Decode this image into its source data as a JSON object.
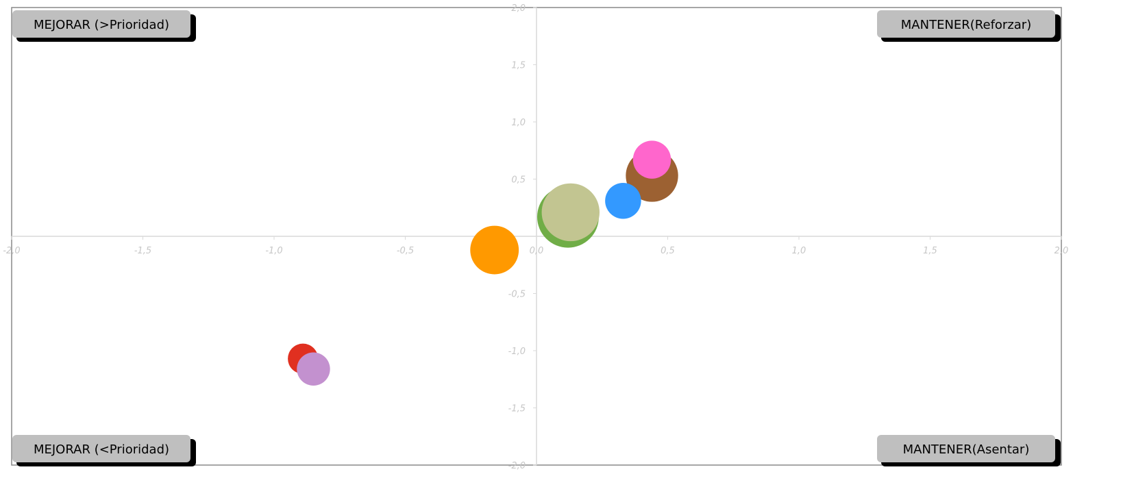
{
  "chart_data": {
    "type": "scatter",
    "title": "",
    "xlabel": "",
    "ylabel": "",
    "xlim": [
      -2.0,
      2.0
    ],
    "ylim": [
      -2.0,
      2.0
    ],
    "grid": false,
    "legend": "none",
    "x_ticks": [
      "-2,0",
      "-1,5",
      "-1,0",
      "-0,5",
      "0,0",
      "0,5",
      "1,0",
      "1,5",
      "2,0"
    ],
    "y_ticks": [
      "2,0",
      "1,5",
      "1,0",
      "0,5",
      "0,0",
      "-0,5",
      "-1,0",
      "-1,5",
      "-2,0"
    ],
    "quadrant_labels": {
      "top_left": "MEJORAR (>Prioridad)",
      "top_right": "MANTENER(Reforzar)",
      "bottom_left": "MEJORAR (<Prioridad)",
      "bottom_right": "MANTENER(Asentar)"
    },
    "points": [
      {
        "x": 0.12,
        "y": 0.17,
        "size": 1.0,
        "color": "#70ad47"
      },
      {
        "x": 0.13,
        "y": 0.21,
        "size": 0.88,
        "color": "#c2c591"
      },
      {
        "x": -0.16,
        "y": -0.12,
        "size": 0.62,
        "color": "#ff9900"
      },
      {
        "x": 0.44,
        "y": 0.53,
        "size": 0.72,
        "color": "#9c6132"
      },
      {
        "x": 0.33,
        "y": 0.31,
        "size": 0.34,
        "color": "#3399ff"
      },
      {
        "x": 0.44,
        "y": 0.67,
        "size": 0.38,
        "color": "#ff66cc"
      },
      {
        "x": -0.89,
        "y": -1.07,
        "size": 0.24,
        "color": "#e03020"
      },
      {
        "x": -0.85,
        "y": -1.16,
        "size": 0.29,
        "color": "#c391cf"
      }
    ]
  }
}
